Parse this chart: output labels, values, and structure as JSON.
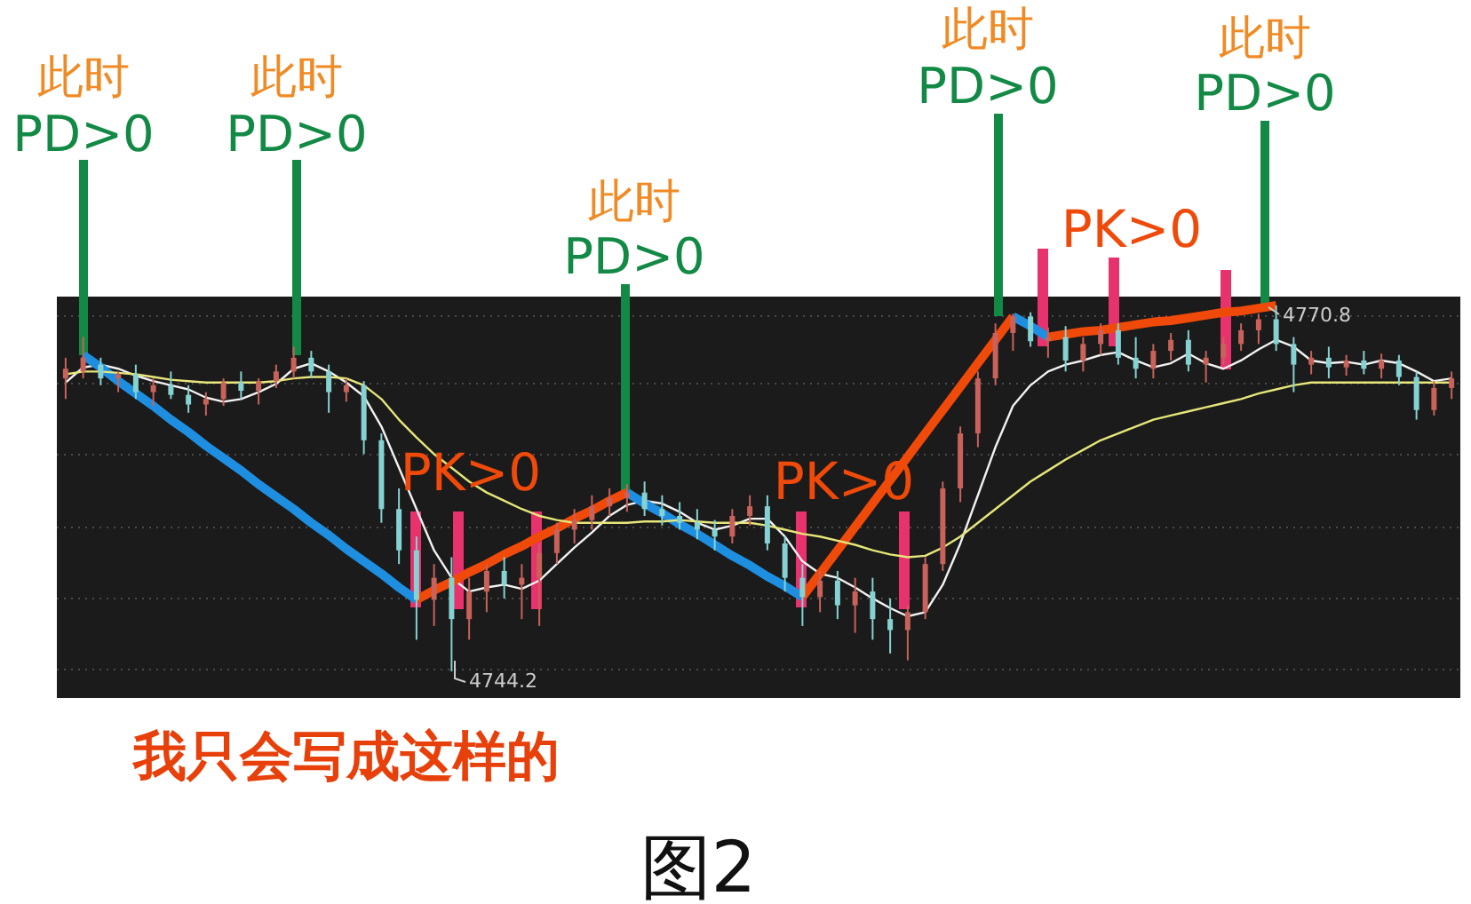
{
  "chart_data": {
    "type": "candlestick",
    "categories": [
      null,
      null,
      null,
      null,
      null,
      null,
      null,
      null,
      null,
      null,
      null,
      null,
      null,
      null,
      null,
      null,
      null,
      null,
      null,
      null,
      null,
      null,
      null,
      null,
      null,
      null,
      null,
      null,
      null,
      null,
      null,
      null,
      null,
      null,
      null,
      null,
      null,
      null,
      null,
      null,
      null,
      null,
      null,
      null,
      null,
      null,
      null,
      null,
      null,
      null,
      null,
      null,
      null,
      null,
      null,
      null,
      null,
      null,
      null,
      null,
      null,
      null,
      null,
      null,
      null,
      null,
      null,
      null,
      null,
      null,
      null,
      null,
      null,
      null,
      null,
      null,
      null,
      null,
      null,
      null
    ],
    "grid": "y",
    "ohlc": [
      [
        4765.5,
        4767,
        4764,
        4766.2
      ],
      [
        4766,
        4768.5,
        4765.5,
        4767
      ],
      [
        4766.5,
        4767,
        4765,
        4765.5
      ],
      [
        4765.5,
        4766,
        4764.5,
        4765.8
      ],
      [
        4765.8,
        4766.5,
        4764,
        4764.5
      ],
      [
        4764.5,
        4765.5,
        4763.5,
        4765
      ],
      [
        4765,
        4766,
        4764,
        4764.3
      ],
      [
        4764.3,
        4765,
        4763,
        4763.6
      ],
      [
        4763.6,
        4764.5,
        4762.8,
        4764
      ],
      [
        4764,
        4765.5,
        4763.5,
        4765.2
      ],
      [
        4765.2,
        4766,
        4764,
        4764.6
      ],
      [
        4764.6,
        4765.5,
        4763.6,
        4765.3
      ],
      [
        4765.3,
        4766.5,
        4764.8,
        4766
      ],
      [
        4766,
        4767.8,
        4765.5,
        4767
      ],
      [
        4767,
        4767.5,
        4765.5,
        4766
      ],
      [
        4766,
        4766.5,
        4763,
        4764.5
      ],
      [
        4764.5,
        4765.5,
        4763.8,
        4765
      ],
      [
        4765,
        4765.3,
        4760,
        4761
      ],
      [
        4761,
        4761.5,
        4755,
        4756
      ],
      [
        4756,
        4757.5,
        4752,
        4753
      ],
      [
        4753,
        4754,
        4746.5,
        4749.4
      ],
      [
        4749.4,
        4752,
        4747.5,
        4751
      ],
      [
        4751,
        4752.5,
        4744.2,
        4748
      ],
      [
        4748,
        4751,
        4746.5,
        4750
      ],
      [
        4750,
        4752,
        4748.5,
        4751.5
      ],
      [
        4751.5,
        4752.5,
        4749.5,
        4750.5
      ],
      [
        4750.5,
        4752,
        4748,
        4751
      ],
      [
        4751,
        4753.5,
        4747.5,
        4752.8
      ],
      [
        4752.8,
        4755,
        4752,
        4754.5
      ],
      [
        4754.5,
        4756,
        4753.5,
        4755.2
      ],
      [
        4755.2,
        4757,
        4754.5,
        4756.2
      ],
      [
        4756.2,
        4757.5,
        4755.5,
        4756.8
      ],
      [
        4756.8,
        4757.8,
        4755.8,
        4757.2
      ],
      [
        4757.2,
        4758,
        4755.5,
        4756
      ],
      [
        4756,
        4757,
        4754.8,
        4755.5
      ],
      [
        4755.5,
        4756.5,
        4754.5,
        4755
      ],
      [
        4755,
        4756,
        4753.8,
        4754.5
      ],
      [
        4754.5,
        4755.2,
        4753,
        4754
      ],
      [
        4754,
        4756,
        4753.5,
        4755.5
      ],
      [
        4755.5,
        4757,
        4754.8,
        4756.2
      ],
      [
        4756.2,
        4757,
        4753,
        4753.5
      ],
      [
        4753.5,
        4754,
        4750,
        4751
      ],
      [
        4751,
        4752,
        4747.5,
        4749.6
      ],
      [
        4749.6,
        4751.5,
        4748.5,
        4750.8
      ],
      [
        4750.8,
        4751.5,
        4748,
        4749
      ],
      [
        4749,
        4751,
        4747,
        4750
      ],
      [
        4750,
        4751,
        4746.5,
        4748
      ],
      [
        4748,
        4749.5,
        4745.5,
        4747.2
      ],
      [
        4747.2,
        4749,
        4745,
        4748.5
      ],
      [
        4748.5,
        4752.5,
        4748,
        4752
      ],
      [
        4752,
        4758,
        4751.5,
        4757.5
      ],
      [
        4757.5,
        4762,
        4756.5,
        4761.5
      ],
      [
        4761.5,
        4766,
        4760.5,
        4765.5
      ],
      [
        4765.5,
        4769.5,
        4765,
        4768.8
      ],
      [
        4768.8,
        4770.2,
        4767.5,
        4770
      ],
      [
        4770,
        4770.3,
        4767.8,
        4768.2
      ],
      [
        4768.2,
        4769.2,
        4767,
        4768.5
      ],
      [
        4768.5,
        4769.3,
        4766,
        4766.8
      ],
      [
        4766.8,
        4768.5,
        4766,
        4768
      ],
      [
        4768,
        4769.5,
        4767.2,
        4769
      ],
      [
        4769,
        4769.5,
        4766.5,
        4767
      ],
      [
        4767,
        4768.5,
        4765.5,
        4766.2
      ],
      [
        4766.2,
        4768,
        4765.5,
        4767.5
      ],
      [
        4767.5,
        4768.8,
        4766.8,
        4768.3
      ],
      [
        4768.3,
        4769,
        4766,
        4766.5
      ],
      [
        4766.5,
        4767.5,
        4765.2,
        4767
      ],
      [
        4767,
        4768.5,
        4766.5,
        4768
      ],
      [
        4768,
        4769.5,
        4767.5,
        4769
      ],
      [
        4769,
        4770.2,
        4768,
        4769.8
      ],
      [
        4769.8,
        4770.8,
        4767.5,
        4768
      ],
      [
        4768,
        4768.5,
        4764.5,
        4766.5
      ],
      [
        4766.5,
        4767.5,
        4765.8,
        4767
      ],
      [
        4767,
        4767.8,
        4765.5,
        4766.3
      ],
      [
        4766.3,
        4767.2,
        4765.7,
        4766.8
      ],
      [
        4766.8,
        4767.5,
        4765.8,
        4766.2
      ],
      [
        4766.2,
        4767.3,
        4765.5,
        4766.8
      ],
      [
        4766.8,
        4767.2,
        4765,
        4765.6
      ],
      [
        4765.6,
        4766,
        4762.5,
        4763.2
      ],
      [
        4763.2,
        4765.3,
        4762.8,
        4764.8
      ],
      [
        4764.8,
        4766,
        4764,
        4765.5
      ]
    ],
    "series": [
      {
        "type": "line",
        "color": "#f2f2f2",
        "values": [
          4765.2,
          4766.3,
          4766.5,
          4766.2,
          4765.7,
          4765.3,
          4765,
          4764.7,
          4764.1,
          4763.8,
          4764,
          4764.5,
          4765.1,
          4766.2,
          4766.6,
          4766,
          4765.2,
          4764.2,
          4762,
          4759,
          4756,
          4753,
          4751,
          4750,
          4750.3,
          4750.5,
          4750.2,
          4750.8,
          4752,
          4753.2,
          4754.3,
          4755.5,
          4756.3,
          4756.6,
          4756.4,
          4755.8,
          4755,
          4754.5,
          4754.8,
          4755.3,
          4755.3,
          4754,
          4752.2,
          4751.3,
          4751,
          4750.3,
          4749.5,
          4748.8,
          4748.2,
          4748.5,
          4750.5,
          4753.5,
          4757,
          4760.5,
          4763.5,
          4765,
          4766,
          4766.5,
          4766.8,
          4767.2,
          4767.4,
          4766.8,
          4766.3,
          4766.6,
          4767.3,
          4766.6,
          4766.2,
          4766.8,
          4767.6,
          4768.3,
          4767.8,
          4766.8,
          4766.6,
          4766.7,
          4766.5,
          4766.8,
          4766.6,
          4766,
          4765.3,
          4765.5
        ]
      },
      {
        "type": "line",
        "color": "#1e8fe0",
        "values": [
          null,
          4767.2,
          4766.3,
          4765.3,
          4764.4,
          4763.5,
          4762.5,
          4761.6,
          4760.6,
          4759.7,
          4758.8,
          4757.8,
          4756.9,
          4756.0,
          4755.0,
          4754.1,
          4753.1,
          4752.2,
          4751.3,
          4750.3,
          4749.4,
          null,
          null,
          null,
          null,
          null,
          null,
          null,
          null,
          null,
          null,
          null,
          null,
          null,
          null,
          null,
          null,
          null,
          null,
          null,
          null,
          null,
          null,
          null,
          null,
          null,
          null,
          null,
          null,
          null,
          null,
          null,
          null,
          null,
          null,
          null,
          null,
          null,
          null,
          null,
          null,
          null,
          null,
          null,
          null,
          null,
          null,
          null,
          null,
          null,
          null,
          null,
          null,
          null,
          null,
          null,
          null,
          null,
          null,
          null
        ]
      },
      {
        "type": "line",
        "color": "#f04a0a",
        "values": [
          null,
          null,
          null,
          null,
          null,
          null,
          null,
          null,
          null,
          null,
          null,
          null,
          null,
          null,
          null,
          null,
          null,
          null,
          null,
          null,
          4749.4,
          4750.1,
          4750.7,
          4751.4,
          4752.0,
          4752.7,
          4753.3,
          4754.0,
          4754.6,
          4755.3,
          4755.9,
          4756.6,
          4757.2,
          null,
          null,
          null,
          null,
          null,
          null,
          null,
          null,
          null,
          null,
          null,
          null,
          null,
          null,
          null,
          null,
          null,
          null,
          null,
          null,
          null,
          null,
          null,
          null,
          null,
          null,
          null,
          null,
          null,
          null,
          null,
          null,
          null,
          null,
          null,
          null,
          null,
          null,
          null,
          null,
          null,
          null,
          null,
          null,
          null,
          null,
          null
        ]
      },
      {
        "type": "line",
        "color": "#1e8fe0",
        "values": [
          null,
          null,
          null,
          null,
          null,
          null,
          null,
          null,
          null,
          null,
          null,
          null,
          null,
          null,
          null,
          null,
          null,
          null,
          null,
          null,
          null,
          null,
          null,
          null,
          null,
          null,
          null,
          null,
          null,
          null,
          null,
          null,
          4757.2,
          4756.4,
          4755.7,
          4754.9,
          4754.2,
          4753.4,
          4752.6,
          4751.9,
          4751.1,
          4750.4,
          4749.6,
          null,
          null,
          null,
          null,
          null,
          null,
          null,
          null,
          null,
          null,
          null,
          null,
          null,
          null,
          null,
          null,
          null,
          null,
          null,
          null,
          null,
          null,
          null,
          null,
          null,
          null,
          null,
          null,
          null,
          null,
          null,
          null,
          null,
          null,
          null,
          null,
          null
        ]
      },
      {
        "type": "line",
        "color": "#f04a0a",
        "values": [
          null,
          null,
          null,
          null,
          null,
          null,
          null,
          null,
          null,
          null,
          null,
          null,
          null,
          null,
          null,
          null,
          null,
          null,
          null,
          null,
          null,
          null,
          null,
          null,
          null,
          null,
          null,
          null,
          null,
          null,
          null,
          null,
          null,
          null,
          null,
          null,
          null,
          null,
          null,
          null,
          null,
          null,
          4749.6,
          4751.3,
          4753.0,
          4754.7,
          4756.4,
          4758.1,
          4759.8,
          4761.5,
          4763.2,
          4764.9,
          4766.6,
          4768.3,
          4770.0,
          null,
          null,
          null,
          null,
          null,
          null,
          null,
          null,
          null,
          null,
          null,
          null,
          null,
          null,
          null,
          null,
          null,
          null,
          null,
          null,
          null,
          null,
          null,
          null,
          null
        ]
      },
      {
        "type": "line",
        "color": "#1e8fe0",
        "values": [
          null,
          null,
          null,
          null,
          null,
          null,
          null,
          null,
          null,
          null,
          null,
          null,
          null,
          null,
          null,
          null,
          null,
          null,
          null,
          null,
          null,
          null,
          null,
          null,
          null,
          null,
          null,
          null,
          null,
          null,
          null,
          null,
          null,
          null,
          null,
          null,
          null,
          null,
          null,
          null,
          null,
          null,
          null,
          null,
          null,
          null,
          null,
          null,
          null,
          null,
          null,
          null,
          null,
          null,
          4770.0,
          4769.3,
          4768.5,
          null,
          null,
          null,
          null,
          null,
          null,
          null,
          null,
          null,
          null,
          null,
          null,
          null,
          null,
          null,
          null,
          null,
          null,
          null,
          null,
          null,
          null,
          null
        ]
      },
      {
        "type": "line",
        "color": "#f04a0a",
        "values": [
          null,
          null,
          null,
          null,
          null,
          null,
          null,
          null,
          null,
          null,
          null,
          null,
          null,
          null,
          null,
          null,
          null,
          null,
          null,
          null,
          null,
          null,
          null,
          null,
          null,
          null,
          null,
          null,
          null,
          null,
          null,
          null,
          null,
          null,
          null,
          null,
          null,
          null,
          null,
          null,
          null,
          null,
          null,
          null,
          null,
          null,
          null,
          null,
          null,
          null,
          null,
          null,
          null,
          null,
          null,
          null,
          4768.5,
          4768.7,
          4768.9,
          4769.0,
          4769.2,
          4769.4,
          4769.6,
          4769.7,
          4769.9,
          4770.1,
          4770.3,
          4770.4,
          4770.6,
          4770.8,
          null,
          null,
          null,
          null,
          null,
          null,
          null,
          null,
          null,
          null
        ]
      },
      {
        "type": "line",
        "color": "#e6e67a",
        "values": [
          4765.8,
          4766,
          4766,
          4765.9,
          4765.8,
          4765.6,
          4765.4,
          4765.3,
          4765.2,
          4765.2,
          4765.2,
          4765.2,
          4765.3,
          4765.5,
          4765.6,
          4765.6,
          4765.5,
          4765,
          4764,
          4762.5,
          4761.2,
          4760,
          4759,
          4758,
          4757.2,
          4756.6,
          4756,
          4755.5,
          4755.2,
          4755,
          4755,
          4755,
          4755,
          4755.1,
          4755.1,
          4755.2,
          4755.1,
          4755,
          4755,
          4755,
          4754.8,
          4754.5,
          4754.2,
          4754,
          4753.7,
          4753.4,
          4753,
          4752.7,
          4752.5,
          4752.6,
          4753.2,
          4754,
          4755,
          4756,
          4757,
          4758,
          4758.8,
          4759.6,
          4760.3,
          4761,
          4761.5,
          4762,
          4762.5,
          4762.8,
          4763.1,
          4763.4,
          4763.7,
          4764,
          4764.4,
          4764.7,
          4765,
          4765.2,
          4765.2,
          4765.2,
          4765.2,
          4765.2,
          4765.2,
          4765.2,
          4765.2,
          4765.2
        ]
      }
    ],
    "annotations": [
      "此时",
      "PD>0",
      "此时",
      "PD>0",
      "此时",
      "PD>0",
      "此时",
      "PD>0",
      "此时",
      "PD>0",
      "PK>0",
      "PK>0",
      "PK>0",
      "4770.8",
      "4744.2",
      "我只会写成这样的",
      "图2"
    ]
  }
}
